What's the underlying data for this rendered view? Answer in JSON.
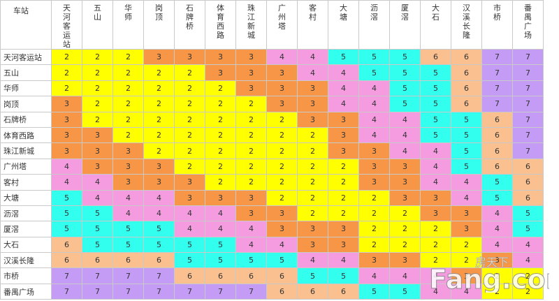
{
  "table": {
    "corner": "车站",
    "stations": [
      "天河客运站",
      "五山",
      "华师",
      "岗顶",
      "石牌桥",
      "体育西路",
      "珠江新城",
      "广州塔",
      "客村",
      "大塘",
      "沥滘",
      "厦滘",
      "大石",
      "汉溪长隆",
      "市桥",
      "番禺广场"
    ],
    "row_stations": [
      "天河客运站",
      "五山",
      "华师",
      "岗顶",
      "石牌桥",
      "体育西路",
      "珠江新城",
      "广州塔",
      "客村",
      "大塘",
      "沥滘",
      "厦滘",
      "大石",
      "汉溪长隆",
      "市桥",
      "番禺广场"
    ],
    "values": [
      [
        2,
        2,
        2,
        3,
        3,
        3,
        3,
        4,
        4,
        5,
        5,
        5,
        6,
        6,
        7,
        7
      ],
      [
        2,
        2,
        2,
        2,
        2,
        3,
        3,
        3,
        4,
        4,
        5,
        5,
        5,
        6,
        7,
        7
      ],
      [
        2,
        2,
        2,
        2,
        2,
        2,
        3,
        3,
        3,
        4,
        4,
        5,
        5,
        6,
        7,
        7
      ],
      [
        3,
        2,
        2,
        2,
        2,
        2,
        2,
        3,
        3,
        4,
        4,
        5,
        5,
        6,
        7,
        7
      ],
      [
        3,
        2,
        2,
        2,
        2,
        2,
        2,
        2,
        3,
        3,
        4,
        4,
        5,
        5,
        6,
        7
      ],
      [
        3,
        3,
        2,
        2,
        2,
        2,
        2,
        2,
        2,
        3,
        4,
        4,
        5,
        5,
        6,
        7
      ],
      [
        3,
        3,
        3,
        2,
        2,
        2,
        2,
        2,
        2,
        3,
        3,
        4,
        4,
        5,
        6,
        7
      ],
      [
        4,
        3,
        3,
        3,
        2,
        2,
        2,
        2,
        2,
        2,
        3,
        3,
        4,
        5,
        6,
        6
      ],
      [
        4,
        4,
        3,
        3,
        3,
        2,
        2,
        2,
        2,
        2,
        3,
        3,
        4,
        4,
        5,
        6
      ],
      [
        5,
        4,
        4,
        4,
        3,
        3,
        3,
        2,
        2,
        2,
        2,
        3,
        3,
        4,
        5,
        6
      ],
      [
        5,
        5,
        4,
        4,
        4,
        4,
        3,
        3,
        2,
        2,
        2,
        2,
        3,
        3,
        4,
        5
      ],
      [
        5,
        5,
        5,
        5,
        4,
        4,
        4,
        3,
        3,
        3,
        2,
        2,
        2,
        3,
        4,
        5
      ],
      [
        6,
        5,
        5,
        5,
        5,
        5,
        4,
        4,
        3,
        3,
        2,
        2,
        2,
        2,
        4,
        4
      ],
      [
        6,
        6,
        6,
        6,
        5,
        5,
        5,
        5,
        4,
        4,
        3,
        3,
        2,
        2,
        3,
        4
      ],
      [
        7,
        7,
        7,
        7,
        6,
        6,
        6,
        6,
        5,
        5,
        4,
        4,
        4,
        3,
        2,
        2
      ],
      [
        7,
        7,
        7,
        7,
        7,
        7,
        7,
        6,
        6,
        6,
        5,
        5,
        4,
        4,
        2,
        2
      ]
    ],
    "fare_colors": {
      "2": "#ffff00",
      "3": "#f79646",
      "4": "#f59be0",
      "5": "#33ffee",
      "6": "#fac090",
      "7": "#c49bf5"
    }
  },
  "watermark": {
    "top_text": "房天下",
    "brand_text": "Fang.com"
  }
}
